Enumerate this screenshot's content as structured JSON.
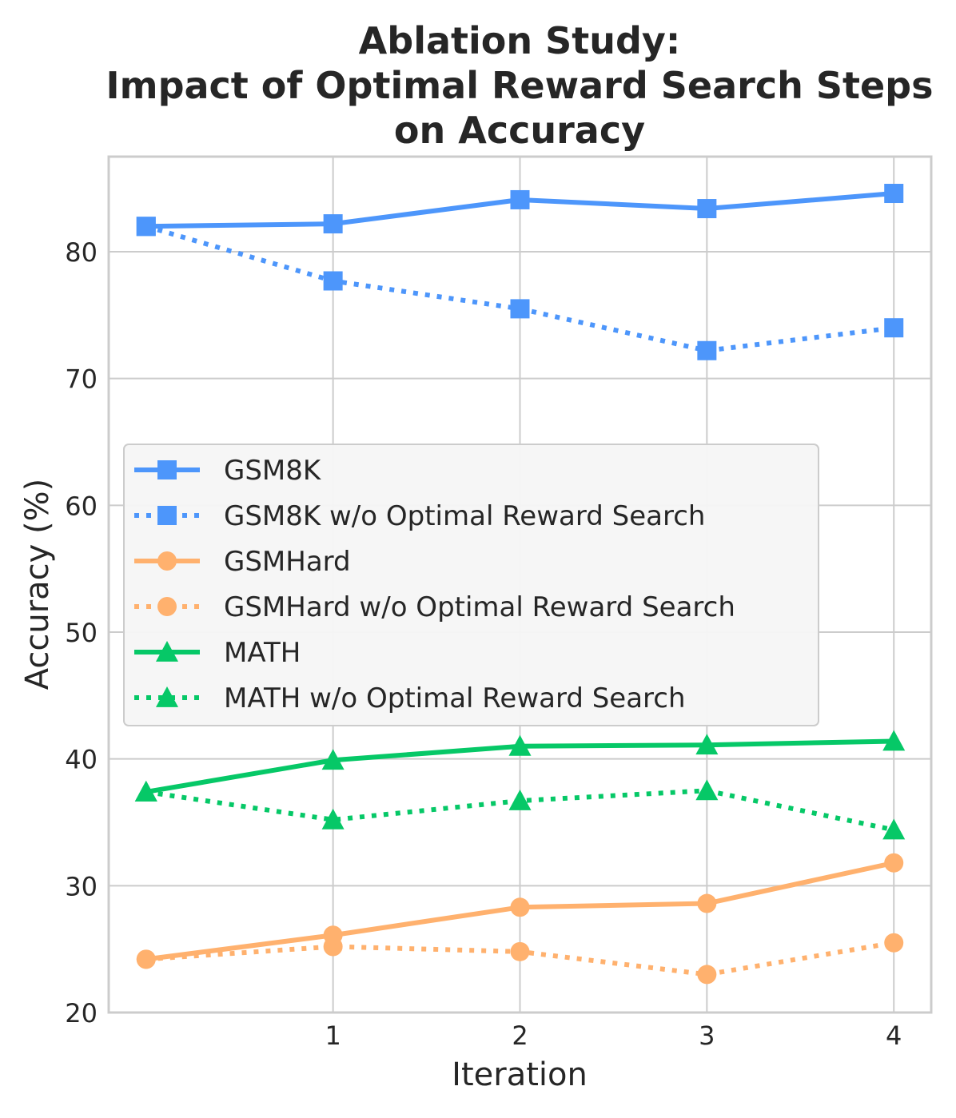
{
  "chart_data": {
    "type": "line",
    "title_lines": [
      "Ablation Study:",
      "Impact of Optimal Reward Search Steps",
      "on Accuracy"
    ],
    "xlabel": "Iteration",
    "ylabel": "Accuracy (%)",
    "x": [
      0,
      1,
      2,
      3,
      4
    ],
    "xticks": [
      1,
      2,
      3,
      4
    ],
    "xlim": [
      -0.2,
      4.2
    ],
    "ylim": [
      20,
      87.5
    ],
    "yticks": [
      20,
      30,
      40,
      50,
      60,
      70,
      80
    ],
    "grid": true,
    "legend_position": "center-left",
    "series": [
      {
        "name": "GSM8K",
        "values": [
          82.0,
          82.2,
          84.1,
          83.4,
          84.6
        ],
        "color": "#4d96fb",
        "style": "solid",
        "marker": "square"
      },
      {
        "name": "GSM8K w/o Optimal Reward Search",
        "values": [
          82.0,
          77.7,
          75.5,
          72.2,
          74.0
        ],
        "color": "#4d96fb",
        "style": "dotted",
        "marker": "square"
      },
      {
        "name": "GSMHard",
        "values": [
          24.2,
          26.1,
          28.3,
          28.6,
          31.8
        ],
        "color": "#ffb16e",
        "style": "solid",
        "marker": "circle"
      },
      {
        "name": "GSMHard w/o Optimal Reward Search",
        "values": [
          24.2,
          25.2,
          24.8,
          23.0,
          25.5
        ],
        "color": "#ffb16e",
        "style": "dotted",
        "marker": "circle"
      },
      {
        "name": "MATH",
        "values": [
          37.4,
          39.9,
          41.0,
          41.1,
          41.4
        ],
        "color": "#06c867",
        "style": "solid",
        "marker": "triangle"
      },
      {
        "name": "MATH w/o Optimal Reward Search",
        "values": [
          37.4,
          35.2,
          36.7,
          37.5,
          34.4
        ],
        "color": "#06c867",
        "style": "dotted",
        "marker": "triangle"
      }
    ]
  }
}
